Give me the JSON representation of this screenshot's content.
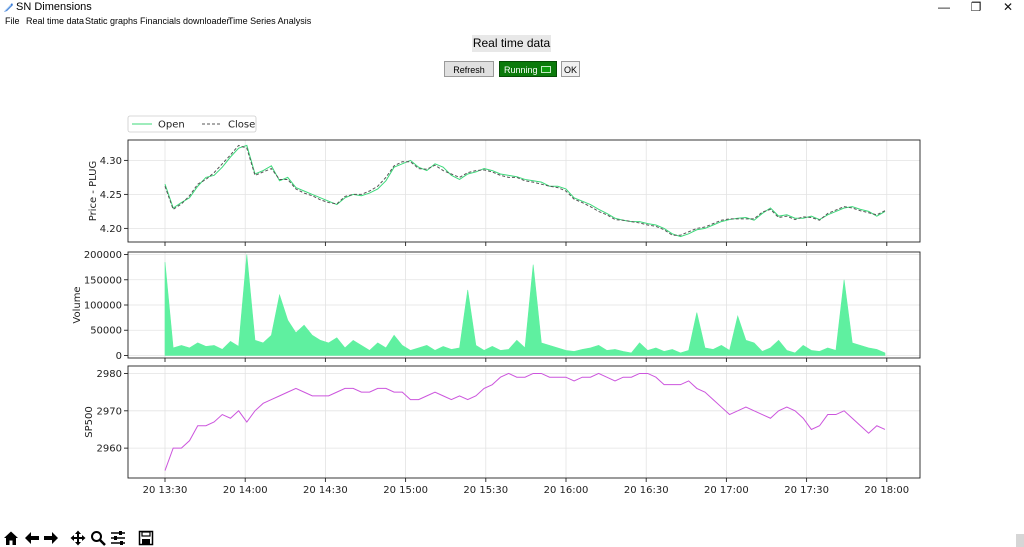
{
  "window": {
    "title": "SN Dimensions",
    "icon": "app-feather-icon"
  },
  "window_controls": {
    "minimize": "—",
    "maximize": "❐",
    "close": "✕"
  },
  "menu": [
    "File",
    "Real time data",
    "Static graphs",
    "Financials downloader",
    "Time Series Analysis"
  ],
  "header": {
    "title": "Real time data"
  },
  "buttons": {
    "refresh": "Refresh",
    "running": "Running",
    "ok": "OK"
  },
  "colors": {
    "open": "#3cd97a",
    "close": "#555555",
    "volume": "#5ff0a0",
    "sp500": "#cc55dd"
  },
  "toolbar_icons": [
    "home-icon",
    "back-arrow-icon",
    "forward-arrow-icon",
    "pan-icon",
    "zoom-icon",
    "configure-subplots-icon",
    "save-icon"
  ],
  "chart_data": [
    {
      "type": "line",
      "ylabel": "Price - PLUG",
      "yticks": [
        4.2,
        4.25,
        4.3
      ],
      "ylim": [
        4.18,
        4.33
      ],
      "grid": true,
      "legend_position": "top-left",
      "legend": [
        "Open",
        "Close"
      ],
      "x": [
        "13:30",
        "13:33",
        "13:36",
        "13:39",
        "13:42",
        "13:45",
        "13:48",
        "13:51",
        "13:54",
        "13:57",
        "14:00",
        "14:03",
        "14:06",
        "14:09",
        "14:12",
        "14:15",
        "14:18",
        "14:21",
        "14:24",
        "14:27",
        "14:30",
        "14:33",
        "14:36",
        "14:39",
        "14:42",
        "14:45",
        "14:48",
        "14:51",
        "14:54",
        "14:57",
        "15:00",
        "15:03",
        "15:06",
        "15:09",
        "15:12",
        "15:15",
        "15:18",
        "15:21",
        "15:24",
        "15:27",
        "15:30",
        "15:33",
        "15:36",
        "15:39",
        "15:42",
        "15:45",
        "15:48",
        "15:51",
        "15:54",
        "15:57",
        "16:00",
        "16:03",
        "16:06",
        "16:09",
        "16:12",
        "16:15",
        "16:18",
        "16:21",
        "16:24",
        "16:27",
        "16:30",
        "16:33",
        "16:36",
        "16:39",
        "16:42",
        "16:45",
        "16:48",
        "16:51",
        "16:54",
        "16:57",
        "17:00",
        "17:03",
        "17:06",
        "17:09",
        "17:12",
        "17:15",
        "17:18",
        "17:21",
        "17:24",
        "17:27",
        "17:30",
        "17:33",
        "17:36",
        "17:39",
        "17:42",
        "17:45",
        "17:48",
        "17:51",
        "17:54"
      ],
      "series": [
        {
          "name": "Open",
          "values": [
            4.265,
            4.23,
            4.238,
            4.245,
            4.262,
            4.275,
            4.278,
            4.29,
            4.305,
            4.318,
            4.322,
            4.28,
            4.285,
            4.292,
            4.27,
            4.275,
            4.26,
            4.255,
            4.25,
            4.245,
            4.24,
            4.235,
            4.245,
            4.25,
            4.248,
            4.252,
            4.258,
            4.27,
            4.29,
            4.295,
            4.3,
            4.29,
            4.285,
            4.295,
            4.29,
            4.278,
            4.272,
            4.28,
            4.283,
            4.288,
            4.285,
            4.28,
            4.278,
            4.276,
            4.272,
            4.27,
            4.268,
            4.262,
            4.262,
            4.258,
            4.245,
            4.24,
            4.235,
            4.228,
            4.222,
            4.215,
            4.212,
            4.21,
            4.21,
            4.207,
            4.205,
            4.2,
            4.192,
            4.188,
            4.192,
            4.198,
            4.2,
            4.205,
            4.21,
            4.213,
            4.215,
            4.216,
            4.212,
            4.222,
            4.23,
            4.218,
            4.22,
            4.215,
            4.215,
            4.218,
            4.213,
            4.22,
            4.225,
            4.23,
            4.232,
            4.228,
            4.225,
            4.218,
            4.225
          ]
        },
        {
          "name": "Close",
          "values": [
            4.262,
            4.228,
            4.236,
            4.248,
            4.265,
            4.272,
            4.282,
            4.295,
            4.308,
            4.322,
            4.318,
            4.278,
            4.283,
            4.288,
            4.272,
            4.272,
            4.258,
            4.252,
            4.248,
            4.242,
            4.238,
            4.236,
            4.247,
            4.25,
            4.25,
            4.255,
            4.262,
            4.275,
            4.292,
            4.298,
            4.298,
            4.288,
            4.287,
            4.293,
            4.285,
            4.28,
            4.275,
            4.282,
            4.285,
            4.286,
            4.283,
            4.278,
            4.275,
            4.275,
            4.27,
            4.268,
            4.265,
            4.262,
            4.26,
            4.255,
            4.243,
            4.238,
            4.232,
            4.225,
            4.22,
            4.213,
            4.212,
            4.21,
            4.208,
            4.205,
            4.203,
            4.198,
            4.19,
            4.19,
            4.195,
            4.2,
            4.202,
            4.207,
            4.212,
            4.214,
            4.214,
            4.214,
            4.214,
            4.224,
            4.228,
            4.216,
            4.218,
            4.213,
            4.217,
            4.216,
            4.212,
            4.222,
            4.227,
            4.232,
            4.23,
            4.226,
            4.223,
            4.22,
            4.226
          ]
        }
      ]
    },
    {
      "type": "area",
      "ylabel": "Volume",
      "yticks": [
        0,
        50000,
        100000,
        150000,
        200000
      ],
      "ylim": [
        -5000,
        205000
      ],
      "grid": true,
      "series": [
        {
          "name": "Volume",
          "values": [
            185000,
            15000,
            20000,
            15000,
            25000,
            18000,
            20000,
            12000,
            28000,
            18000,
            200000,
            30000,
            25000,
            40000,
            120000,
            70000,
            45000,
            60000,
            40000,
            30000,
            25000,
            35000,
            15000,
            30000,
            20000,
            10000,
            25000,
            15000,
            40000,
            20000,
            10000,
            15000,
            20000,
            10000,
            18000,
            12000,
            15000,
            130000,
            20000,
            10000,
            18000,
            10000,
            12000,
            30000,
            15000,
            180000,
            25000,
            20000,
            15000,
            10000,
            8000,
            12000,
            15000,
            20000,
            10000,
            12000,
            8000,
            5000,
            25000,
            10000,
            15000,
            8000,
            12000,
            5000,
            10000,
            85000,
            15000,
            12000,
            20000,
            10000,
            78000,
            30000,
            25000,
            8000,
            15000,
            30000,
            10000,
            5000,
            20000,
            10000,
            8000,
            15000,
            10000,
            150000,
            25000,
            20000,
            15000,
            12000,
            5000
          ]
        }
      ]
    },
    {
      "type": "line",
      "ylabel": "SP500",
      "yticks": [
        2960,
        2970,
        2980
      ],
      "ylim": [
        2952,
        2982
      ],
      "grid": true,
      "xticks": [
        "20 13:30",
        "20 14:00",
        "20 14:30",
        "20 15:00",
        "20 15:30",
        "20 16:00",
        "20 16:30",
        "20 17:00",
        "20 17:30",
        "20 18:00"
      ],
      "series": [
        {
          "name": "SP500",
          "values": [
            2954,
            2960,
            2960,
            2962,
            2966,
            2966,
            2967,
            2969,
            2968,
            2970,
            2967,
            2970,
            2972,
            2973,
            2974,
            2975,
            2976,
            2975,
            2974,
            2974,
            2974,
            2975,
            2976,
            2976,
            2975,
            2975,
            2976,
            2976,
            2975,
            2975,
            2973,
            2973,
            2974,
            2975,
            2974,
            2973,
            2974,
            2973,
            2974,
            2976,
            2977,
            2979,
            2980,
            2979,
            2979,
            2980,
            2980,
            2979,
            2979,
            2979,
            2978,
            2979,
            2979,
            2980,
            2979,
            2978,
            2979,
            2979,
            2980,
            2980,
            2979,
            2977,
            2977,
            2977,
            2978,
            2976,
            2975,
            2973,
            2971,
            2969,
            2970,
            2971,
            2970,
            2969,
            2968,
            2970,
            2971,
            2970,
            2968,
            2965,
            2966,
            2969,
            2969,
            2970,
            2968,
            2966,
            2964,
            2966,
            2965
          ]
        }
      ]
    }
  ]
}
